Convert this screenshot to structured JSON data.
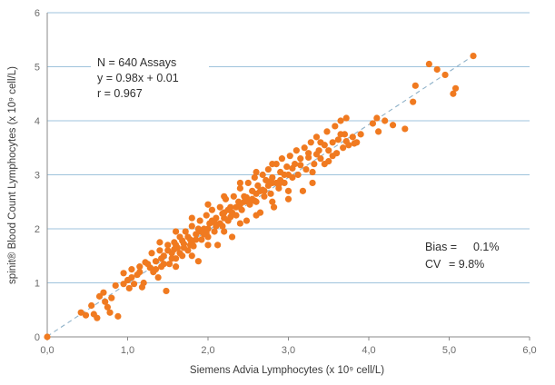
{
  "chart_data": {
    "type": "scatter",
    "xlabel": "Siemens Advia Lymphocytes (x 10⁹ cell/L)",
    "ylabel": "spinit® Blood Count Lymphocytes (x 10⁹ cell/L)",
    "xlim": [
      0,
      6
    ],
    "ylim": [
      0,
      6
    ],
    "xticks": [
      "0,0",
      "1,0",
      "2,0",
      "3,0",
      "4,0",
      "5,0",
      "6,0"
    ],
    "yticks": [
      "0",
      "1",
      "2",
      "3",
      "4",
      "5",
      "6"
    ],
    "grid": "horizontal",
    "point_color": "#f07a20",
    "trendline_color": "#8fb2c9",
    "regression": {
      "slope": 0.98,
      "intercept": 0.01
    },
    "annotations": {
      "stats": [
        "N = 640 Assays",
        "y = 0.98x + 0.01",
        "r = 0.967"
      ],
      "bias_label": "Bias =",
      "bias_value": "0.1%",
      "cv_label": "CV",
      "cv_value": "= 9.8%"
    },
    "points": [
      [
        0.0,
        0.0
      ],
      [
        0.42,
        0.45
      ],
      [
        0.48,
        0.4
      ],
      [
        0.55,
        0.58
      ],
      [
        0.58,
        0.42
      ],
      [
        0.62,
        0.35
      ],
      [
        0.65,
        0.75
      ],
      [
        0.7,
        0.82
      ],
      [
        0.72,
        0.65
      ],
      [
        0.75,
        0.55
      ],
      [
        0.78,
        0.45
      ],
      [
        0.8,
        0.72
      ],
      [
        0.85,
        0.95
      ],
      [
        0.88,
        0.38
      ],
      [
        0.95,
        1.18
      ],
      [
        1.0,
        1.05
      ],
      [
        1.02,
        0.9
      ],
      [
        1.05,
        1.25
      ],
      [
        1.08,
        0.98
      ],
      [
        1.12,
        1.15
      ],
      [
        1.15,
        1.3
      ],
      [
        1.18,
        0.92
      ],
      [
        1.2,
        1.0
      ],
      [
        1.22,
        1.38
      ],
      [
        1.28,
        1.28
      ],
      [
        1.3,
        1.55
      ],
      [
        1.32,
        1.2
      ],
      [
        1.35,
        1.4
      ],
      [
        1.38,
        1.1
      ],
      [
        1.4,
        1.6
      ],
      [
        1.42,
        1.3
      ],
      [
        1.45,
        1.5
      ],
      [
        1.48,
        0.85
      ],
      [
        1.5,
        1.7
      ],
      [
        1.52,
        1.35
      ],
      [
        1.55,
        1.55
      ],
      [
        1.58,
        1.75
      ],
      [
        1.6,
        1.45
      ],
      [
        1.62,
        1.65
      ],
      [
        1.65,
        1.85
      ],
      [
        1.68,
        1.5
      ],
      [
        1.7,
        1.72
      ],
      [
        1.72,
        1.95
      ],
      [
        1.75,
        1.6
      ],
      [
        1.78,
        1.8
      ],
      [
        1.8,
        2.05
      ],
      [
        1.82,
        1.68
      ],
      [
        1.85,
        1.9
      ],
      [
        1.88,
        1.4
      ],
      [
        1.9,
        2.15
      ],
      [
        1.92,
        1.8
      ],
      [
        1.95,
        2.0
      ],
      [
        1.98,
        2.25
      ],
      [
        2.0,
        1.85
      ],
      [
        2.02,
        2.1
      ],
      [
        2.05,
        2.35
      ],
      [
        2.08,
        1.95
      ],
      [
        2.1,
        2.2
      ],
      [
        2.12,
        1.7
      ],
      [
        2.15,
        2.4
      ],
      [
        2.18,
        2.05
      ],
      [
        2.2,
        2.3
      ],
      [
        2.22,
        2.55
      ],
      [
        2.25,
        2.15
      ],
      [
        2.28,
        2.4
      ],
      [
        2.3,
        1.85
      ],
      [
        2.32,
        2.6
      ],
      [
        2.35,
        2.25
      ],
      [
        2.38,
        2.5
      ],
      [
        2.4,
        2.75
      ],
      [
        2.42,
        2.35
      ],
      [
        2.45,
        2.6
      ],
      [
        2.48,
        2.15
      ],
      [
        2.5,
        2.85
      ],
      [
        2.52,
        2.45
      ],
      [
        2.55,
        2.7
      ],
      [
        2.58,
        2.95
      ],
      [
        2.6,
        2.5
      ],
      [
        2.62,
        2.8
      ],
      [
        2.65,
        2.3
      ],
      [
        2.68,
        3.0
      ],
      [
        2.7,
        2.6
      ],
      [
        2.72,
        2.9
      ],
      [
        2.75,
        3.1
      ],
      [
        2.78,
        2.65
      ],
      [
        2.8,
        2.95
      ],
      [
        2.82,
        2.4
      ],
      [
        2.85,
        3.2
      ],
      [
        2.88,
        2.75
      ],
      [
        2.9,
        3.05
      ],
      [
        2.92,
        3.3
      ],
      [
        2.95,
        2.85
      ],
      [
        2.98,
        3.15
      ],
      [
        3.0,
        2.55
      ],
      [
        3.02,
        3.35
      ],
      [
        3.05,
        2.95
      ],
      [
        3.08,
        3.2
      ],
      [
        3.1,
        3.45
      ],
      [
        3.12,
        3.0
      ],
      [
        3.15,
        3.3
      ],
      [
        3.18,
        2.7
      ],
      [
        3.2,
        3.5
      ],
      [
        3.22,
        3.1
      ],
      [
        3.25,
        3.4
      ],
      [
        3.28,
        3.6
      ],
      [
        3.3,
        2.85
      ],
      [
        3.32,
        3.2
      ],
      [
        3.35,
        3.7
      ],
      [
        3.38,
        3.45
      ],
      [
        3.4,
        3.3
      ],
      [
        3.45,
        3.55
      ],
      [
        3.48,
        3.8
      ],
      [
        3.5,
        3.25
      ],
      [
        3.55,
        3.6
      ],
      [
        3.58,
        3.9
      ],
      [
        3.6,
        3.4
      ],
      [
        3.62,
        3.65
      ],
      [
        3.65,
        4.0
      ],
      [
        3.68,
        3.5
      ],
      [
        3.7,
        3.75
      ],
      [
        3.72,
        4.05
      ],
      [
        3.75,
        3.55
      ],
      [
        3.8,
        3.7
      ],
      [
        3.85,
        3.6
      ],
      [
        3.9,
        3.75
      ],
      [
        4.05,
        3.95
      ],
      [
        4.1,
        4.05
      ],
      [
        4.12,
        3.8
      ],
      [
        4.2,
        4.0
      ],
      [
        4.3,
        3.92
      ],
      [
        4.45,
        3.85
      ],
      [
        4.55,
        4.35
      ],
      [
        4.58,
        4.65
      ],
      [
        4.75,
        5.05
      ],
      [
        4.85,
        4.95
      ],
      [
        4.95,
        4.85
      ],
      [
        5.05,
        4.5
      ],
      [
        5.08,
        4.6
      ],
      [
        5.3,
        5.2
      ],
      [
        1.5,
        1.6
      ],
      [
        1.6,
        1.7
      ],
      [
        1.7,
        1.65
      ],
      [
        1.8,
        1.75
      ],
      [
        1.9,
        1.95
      ],
      [
        2.0,
        2.0
      ],
      [
        2.1,
        2.05
      ],
      [
        2.2,
        2.2
      ],
      [
        2.3,
        2.3
      ],
      [
        2.4,
        2.45
      ],
      [
        2.5,
        2.5
      ],
      [
        2.6,
        2.65
      ],
      [
        2.7,
        2.7
      ],
      [
        2.8,
        2.85
      ],
      [
        2.9,
        2.9
      ],
      [
        3.0,
        3.0
      ],
      [
        1.45,
        1.35
      ],
      [
        1.55,
        1.45
      ],
      [
        1.65,
        1.55
      ],
      [
        1.75,
        1.85
      ],
      [
        1.85,
        1.8
      ],
      [
        1.95,
        1.9
      ],
      [
        2.05,
        2.15
      ],
      [
        2.15,
        2.1
      ],
      [
        2.25,
        2.35
      ],
      [
        2.35,
        2.4
      ],
      [
        2.45,
        2.5
      ],
      [
        2.55,
        2.55
      ],
      [
        2.65,
        2.7
      ],
      [
        2.75,
        2.8
      ],
      [
        2.85,
        2.85
      ],
      [
        2.95,
        3.0
      ],
      [
        1.35,
        1.25
      ],
      [
        1.42,
        1.45
      ],
      [
        1.58,
        1.62
      ],
      [
        1.68,
        1.78
      ],
      [
        1.78,
        1.7
      ],
      [
        1.88,
        2.0
      ],
      [
        1.98,
        1.92
      ],
      [
        2.08,
        2.12
      ],
      [
        2.18,
        2.28
      ],
      [
        2.28,
        2.22
      ],
      [
        2.38,
        2.42
      ],
      [
        2.48,
        2.58
      ],
      [
        2.58,
        2.52
      ],
      [
        2.68,
        2.72
      ],
      [
        2.78,
        2.88
      ],
      [
        2.88,
        2.82
      ],
      [
        3.05,
        3.12
      ],
      [
        3.15,
        3.18
      ],
      [
        3.25,
        3.32
      ],
      [
        3.35,
        3.38
      ],
      [
        1.25,
        1.35
      ],
      [
        1.15,
        1.2
      ],
      [
        1.05,
        1.1
      ],
      [
        0.95,
        0.98
      ],
      [
        1.4,
        1.75
      ],
      [
        1.6,
        1.95
      ],
      [
        1.8,
        2.2
      ],
      [
        2.0,
        2.45
      ],
      [
        2.2,
        2.6
      ],
      [
        2.4,
        2.85
      ],
      [
        2.6,
        3.05
      ],
      [
        2.8,
        3.2
      ],
      [
        1.6,
        1.3
      ],
      [
        1.8,
        1.5
      ],
      [
        2.0,
        1.7
      ],
      [
        2.2,
        1.95
      ],
      [
        2.4,
        2.1
      ],
      [
        2.6,
        2.25
      ],
      [
        2.8,
        2.5
      ],
      [
        3.0,
        2.7
      ],
      [
        3.3,
        3.05
      ],
      [
        3.45,
        3.2
      ],
      [
        3.55,
        3.35
      ],
      [
        3.65,
        3.75
      ],
      [
        3.72,
        3.62
      ],
      [
        3.82,
        3.58
      ],
      [
        3.5,
        3.45
      ],
      [
        3.4,
        3.6
      ]
    ]
  }
}
